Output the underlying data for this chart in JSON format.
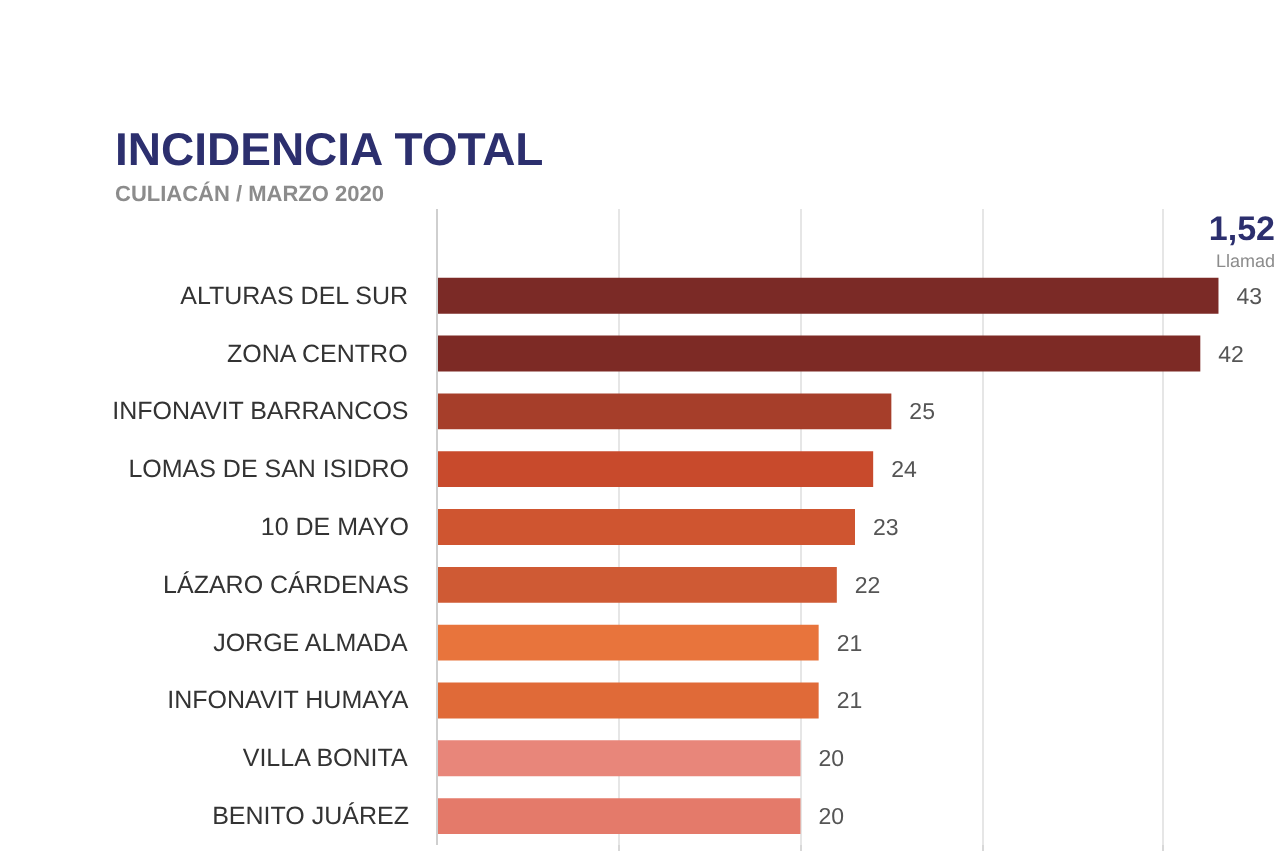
{
  "chart_data": {
    "type": "bar",
    "orientation": "horizontal",
    "title": "INCIDENCIA TOTAL",
    "subtitle": "CULIACÁN / MARZO 2020",
    "categories": [
      "ALTURAS DEL SUR",
      "ZONA CENTRO",
      "INFONAVIT BARRANCOS",
      "LOMAS DE SAN ISIDRO",
      "10 DE MAYO",
      "LÁZARO CÁRDENAS",
      "JORGE ALMADA",
      "INFONAVIT HUMAYA",
      "VILLA BONITA",
      "BENITO JUÁREZ"
    ],
    "values": [
      43,
      42,
      25,
      24,
      23,
      22,
      21,
      21,
      20,
      20
    ],
    "colors": [
      "#7b2a26",
      "#7d2a25",
      "#a63e2a",
      "#c84a2c",
      "#cf5530",
      "#cf5a34",
      "#e8743c",
      "#e06a38",
      "#e8867a",
      "#e47a6a"
    ],
    "data_labels": true,
    "xticks": [
      {
        "value": 10,
        "label": null
      },
      {
        "value": 20,
        "label": null
      },
      {
        "value": 30,
        "label": null
      },
      {
        "value": 40,
        "label": null
      }
    ],
    "grid": "x",
    "annotations": [
      "1,52",
      "Llamad"
    ]
  }
}
